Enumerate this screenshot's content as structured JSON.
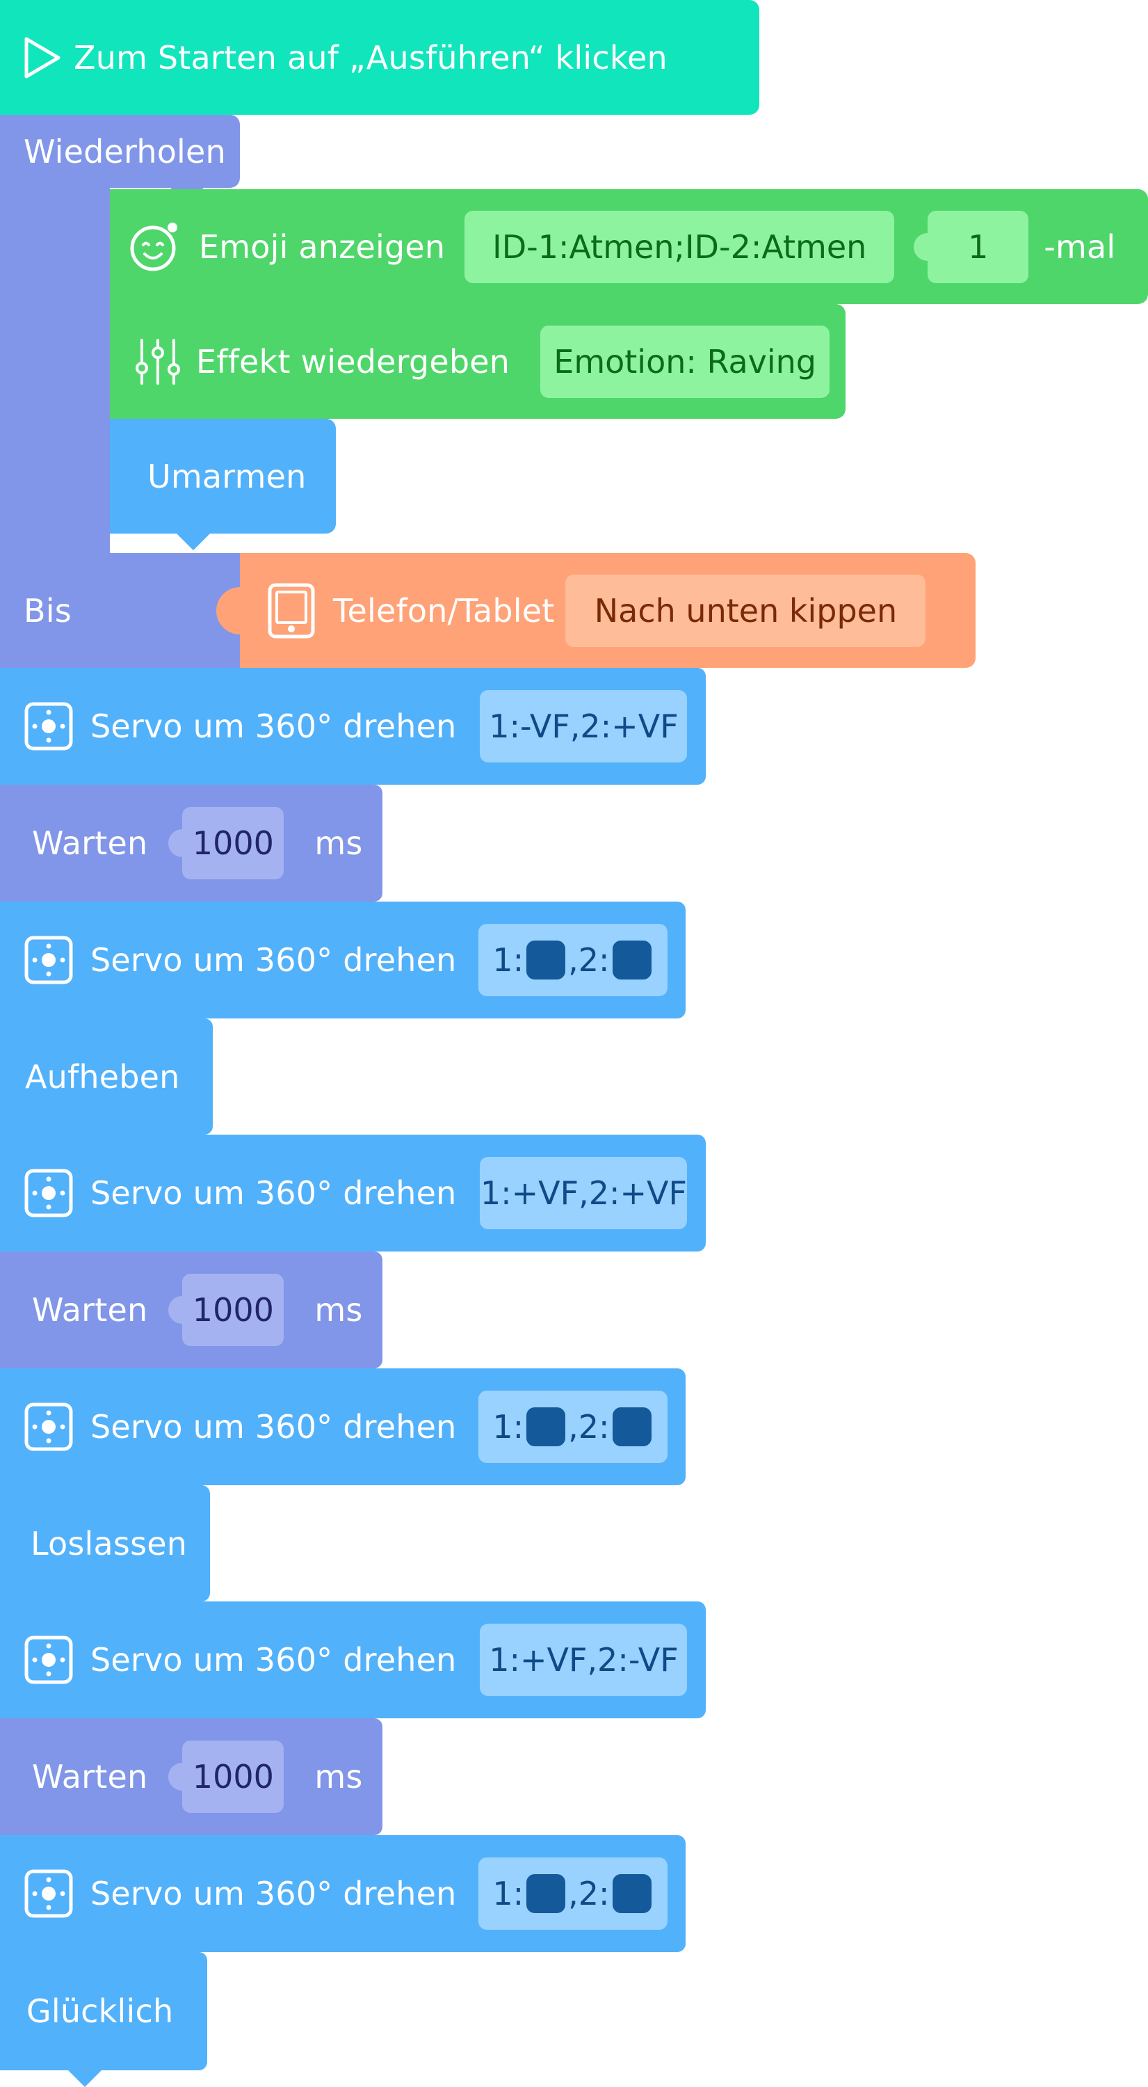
{
  "program": {
    "start": {
      "label": "Zum Starten auf „Ausführen“ klicken",
      "icon": "play-icon"
    },
    "repeat": {
      "label": "Wiederholen",
      "until_label": "Bis",
      "body": {
        "emoji": {
          "label": "Emoji anzeigen",
          "value": "ID-1:Atmen;ID-2:Atmen",
          "count": "1",
          "suffix": "-mal",
          "icon": "emoji-face-icon"
        },
        "effect": {
          "label": "Effekt wiedergeben",
          "value": "Emotion: Raving",
          "icon": "sliders-icon"
        },
        "hug": {
          "label": "Umarmen"
        }
      },
      "condition": {
        "label": "Telefon/Tablet",
        "value": "Nach unten kippen",
        "icon": "tablet-icon"
      }
    },
    "steps": [
      {
        "kind": "servo",
        "label": "Servo um 360° drehen",
        "value": "1:-VF,2:+VF",
        "icon": "servo-icon"
      },
      {
        "kind": "wait",
        "label": "Warten",
        "value": "1000",
        "unit": "ms"
      },
      {
        "kind": "servo-stop",
        "label": "Servo um 360° drehen",
        "prefix1": "1:",
        "prefix2": ",2:",
        "icon": "servo-icon"
      },
      {
        "kind": "action",
        "label": "Aufheben"
      },
      {
        "kind": "servo",
        "label": "Servo um 360° drehen",
        "value": "1:+VF,2:+VF",
        "icon": "servo-icon"
      },
      {
        "kind": "wait",
        "label": "Warten",
        "value": "1000",
        "unit": "ms"
      },
      {
        "kind": "servo-stop",
        "label": "Servo um 360° drehen",
        "prefix1": "1:",
        "prefix2": ",2:",
        "icon": "servo-icon"
      },
      {
        "kind": "action",
        "label": "Loslassen"
      },
      {
        "kind": "servo",
        "label": "Servo um 360° drehen",
        "value": "1:+VF,2:-VF",
        "icon": "servo-icon"
      },
      {
        "kind": "wait",
        "label": "Warten",
        "value": "1000",
        "unit": "ms"
      },
      {
        "kind": "servo-stop",
        "label": "Servo um 360° drehen",
        "prefix1": "1:",
        "prefix2": ",2:",
        "icon": "servo-icon"
      },
      {
        "kind": "action",
        "label": "Glücklich"
      }
    ]
  },
  "colors": {
    "start": "#11e5bc",
    "control": "#8196e8",
    "display": "#4fd66a",
    "motion": "#52b1fb",
    "sensor": "#ffa277"
  }
}
